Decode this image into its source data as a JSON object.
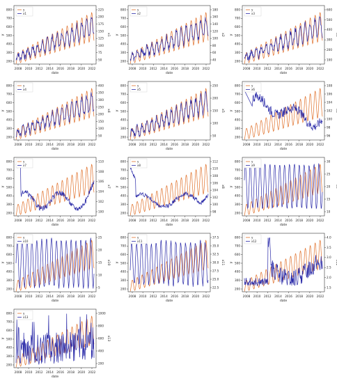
{
  "figure": {
    "background": "#ffffff",
    "colors": {
      "y": "#e0702a",
      "x": "#2a2aa8",
      "axis": "#333333"
    }
  },
  "chart_data": [
    {
      "type": "line",
      "xlabel": "date",
      "ylabel": "y",
      "y2label": "x1",
      "x_ticks": [
        "2008",
        "2010",
        "2012",
        "2014",
        "2016",
        "2018",
        "2020",
        "2022"
      ],
      "y_ticks": [
        "200",
        "300",
        "400",
        "500",
        "600",
        "700",
        "800"
      ],
      "y2_ticks": [
        "50",
        "75",
        "100",
        "125",
        "150",
        "175",
        "200",
        "225"
      ],
      "legend": [
        "y",
        "x1"
      ],
      "legend_position": "top-left",
      "series": [
        {
          "name": "y",
          "trend": "rising",
          "seasonal": true,
          "range": [
            240,
            820
          ]
        },
        {
          "name": "x1",
          "trend": "rising",
          "seasonal": true,
          "range": [
            55,
            225
          ]
        }
      ]
    },
    {
      "type": "line",
      "xlabel": "date",
      "ylabel": "y",
      "y2label": "x2",
      "x_ticks": [
        "2008",
        "2010",
        "2012",
        "2014",
        "2016",
        "2018",
        "2020",
        "2022"
      ],
      "y_ticks": [
        "200",
        "300",
        "400",
        "500",
        "600",
        "700",
        "800"
      ],
      "y2_ticks": [
        "40",
        "60",
        "80",
        "100",
        "120",
        "140",
        "160",
        "180"
      ],
      "legend": [
        "y",
        "x2"
      ],
      "legend_position": "top-left",
      "series": [
        {
          "name": "y",
          "range": [
            240,
            820
          ]
        },
        {
          "name": "x2",
          "range": [
            40,
            180
          ]
        }
      ]
    },
    {
      "type": "line",
      "xlabel": "date",
      "ylabel": "y",
      "y2label": "x3",
      "x_ticks": [
        "2008",
        "2010",
        "2012",
        "2014",
        "2016",
        "2018",
        "2020",
        "2022"
      ],
      "y_ticks": [
        "200",
        "300",
        "400",
        "500",
        "600",
        "700",
        "800"
      ],
      "y2_ticks": [
        "100",
        "200",
        "300",
        "400",
        "500",
        "600"
      ],
      "legend": [
        "y",
        "x3"
      ],
      "legend_position": "top-left",
      "series": [
        {
          "name": "y",
          "range": [
            240,
            820
          ]
        },
        {
          "name": "x3",
          "range": [
            100,
            600
          ]
        }
      ]
    },
    {
      "type": "line",
      "xlabel": "date",
      "ylabel": "y",
      "y2label": "x4",
      "x_ticks": [
        "2008",
        "2010",
        "2012",
        "2014",
        "2016",
        "2018",
        "2020",
        "2022"
      ],
      "y_ticks": [
        "200",
        "300",
        "400",
        "500",
        "600",
        "700",
        "800"
      ],
      "y2_ticks": [
        "50",
        "100",
        "150",
        "200",
        "250",
        "300",
        "350",
        "400"
      ],
      "legend": [
        "y",
        "x4"
      ],
      "legend_position": "top-left",
      "series": [
        {
          "name": "y",
          "range": [
            240,
            820
          ]
        },
        {
          "name": "x4",
          "range": [
            50,
            400
          ]
        }
      ]
    },
    {
      "type": "line",
      "xlabel": "date",
      "ylabel": "y",
      "y2label": "x5",
      "x_ticks": [
        "2008",
        "2010",
        "2012",
        "2014",
        "2016",
        "2018",
        "2020",
        "2022"
      ],
      "y_ticks": [
        "200",
        "300",
        "400",
        "500",
        "600",
        "700",
        "800"
      ],
      "y2_ticks": [
        "50",
        "100",
        "150",
        "200",
        "250"
      ],
      "legend": [
        "y",
        "x5"
      ],
      "legend_position": "top-left",
      "series": [
        {
          "name": "y",
          "range": [
            240,
            820
          ]
        },
        {
          "name": "x5",
          "range": [
            50,
            250
          ]
        }
      ]
    },
    {
      "type": "line",
      "xlabel": "date",
      "ylabel": "y",
      "y2label": "x6",
      "x_ticks": [
        "2008",
        "2010",
        "2012",
        "2014",
        "2016",
        "2018",
        "2020",
        "2022"
      ],
      "y_ticks": [
        "200",
        "300",
        "400",
        "500",
        "600",
        "700",
        "800"
      ],
      "y2_ticks": [
        "96",
        "98",
        "100",
        "102",
        "104",
        "106",
        "108"
      ],
      "legend": [
        "y",
        "x6"
      ],
      "legend_position": "top-left",
      "series": [
        {
          "name": "y",
          "range": [
            240,
            820
          ]
        },
        {
          "name": "x6",
          "range": [
            96,
            108
          ]
        }
      ]
    },
    {
      "type": "line",
      "xlabel": "date",
      "ylabel": "y",
      "y2label": "x7",
      "x_ticks": [
        "2008",
        "2010",
        "2012",
        "2014",
        "2016",
        "2018",
        "2020",
        "2022"
      ],
      "y_ticks": [
        "200",
        "300",
        "400",
        "500",
        "600",
        "700",
        "800"
      ],
      "y2_ticks": [
        "100",
        "102",
        "104",
        "106",
        "108",
        "110"
      ],
      "legend": [
        "y",
        "x7"
      ],
      "legend_position": "top-left",
      "series": [
        {
          "name": "y",
          "range": [
            240,
            820
          ]
        },
        {
          "name": "x7",
          "range": [
            100,
            110
          ]
        }
      ]
    },
    {
      "type": "line",
      "xlabel": "date",
      "ylabel": "y",
      "y2label": "x8",
      "x_ticks": [
        "2008",
        "2010",
        "2012",
        "2014",
        "2016",
        "2018",
        "2020",
        "2022"
      ],
      "y_ticks": [
        "200",
        "300",
        "400",
        "500",
        "600",
        "700",
        "800"
      ],
      "y2_ticks": [
        "98",
        "100",
        "102",
        "104",
        "106",
        "108",
        "110",
        "112"
      ],
      "legend": [
        "y",
        "x8"
      ],
      "legend_position": "top-left",
      "series": [
        {
          "name": "y",
          "range": [
            240,
            820
          ]
        },
        {
          "name": "x8",
          "range": [
            98,
            112
          ]
        }
      ]
    },
    {
      "type": "line",
      "xlabel": "date",
      "ylabel": "y",
      "y2label": "x9",
      "x_ticks": [
        "2008",
        "2010",
        "2012",
        "2014",
        "2016",
        "2018",
        "2020",
        "2022"
      ],
      "y_ticks": [
        "200",
        "300",
        "400",
        "500",
        "600",
        "700",
        "800"
      ],
      "y2_ticks": [
        "10",
        "15",
        "20",
        "25",
        "30"
      ],
      "legend": [
        "y",
        "x9"
      ],
      "legend_position": "top-left",
      "series": [
        {
          "name": "y",
          "range": [
            240,
            820
          ]
        },
        {
          "name": "x9",
          "range": [
            10,
            30
          ]
        }
      ]
    },
    {
      "type": "line",
      "xlabel": "date",
      "ylabel": "y",
      "y2label": "x10",
      "x_ticks": [
        "2008",
        "2010",
        "2012",
        "2014",
        "2016",
        "2018",
        "2020",
        "2022"
      ],
      "y_ticks": [
        "200",
        "300",
        "400",
        "500",
        "600",
        "700",
        "800"
      ],
      "y2_ticks": [
        "5",
        "10",
        "15",
        "20",
        "25"
      ],
      "legend": [
        "y",
        "x10"
      ],
      "legend_position": "top-left",
      "series": [
        {
          "name": "y",
          "range": [
            240,
            820
          ]
        },
        {
          "name": "x10",
          "range": [
            2,
            25
          ]
        }
      ]
    },
    {
      "type": "line",
      "xlabel": "date",
      "ylabel": "y",
      "y2label": "x11",
      "x_ticks": [
        "2008",
        "2010",
        "2012",
        "2014",
        "2016",
        "2018",
        "2020",
        "2022"
      ],
      "y_ticks": [
        "200",
        "300",
        "400",
        "500",
        "600",
        "700",
        "800"
      ],
      "y2_ticks": [
        "22.5",
        "25.0",
        "27.5",
        "30.0",
        "32.5",
        "35.0",
        "37.5"
      ],
      "legend": [
        "y",
        "x11"
      ],
      "legend_position": "top-left",
      "series": [
        {
          "name": "y",
          "range": [
            240,
            820
          ]
        },
        {
          "name": "x11",
          "range": [
            21,
            38
          ]
        }
      ]
    },
    {
      "type": "line",
      "xlabel": "date",
      "ylabel": "y",
      "y2label": "x12",
      "x_ticks": [
        "2008",
        "2010",
        "2012",
        "2014",
        "2016",
        "2018",
        "2020",
        "2022"
      ],
      "y_ticks": [
        "200",
        "300",
        "400",
        "500",
        "600",
        "700",
        "800"
      ],
      "y2_ticks": [
        "1.5",
        "2.0",
        "2.5",
        "3.0",
        "3.5",
        "4.0"
      ],
      "legend": [
        "y",
        "x12"
      ],
      "legend_position": "top-left",
      "series": [
        {
          "name": "y",
          "range": [
            240,
            820
          ]
        },
        {
          "name": "x12",
          "range": [
            1.4,
            4.0
          ]
        }
      ]
    },
    {
      "type": "line",
      "xlabel": "date",
      "ylabel": "y",
      "y2label": "x13",
      "x_ticks": [
        "2008",
        "2010",
        "2012",
        "2014",
        "2016",
        "2018",
        "2020",
        "2022"
      ],
      "y_ticks": [
        "200",
        "300",
        "400",
        "500",
        "600",
        "700",
        "800"
      ],
      "y2_ticks": [
        "200",
        "400",
        "600",
        "800",
        "1000"
      ],
      "legend": [
        "y",
        "x13"
      ],
      "legend_position": "top-left",
      "series": [
        {
          "name": "y",
          "range": [
            240,
            820
          ]
        },
        {
          "name": "x13",
          "range": [
            100,
            1000
          ]
        }
      ]
    }
  ]
}
